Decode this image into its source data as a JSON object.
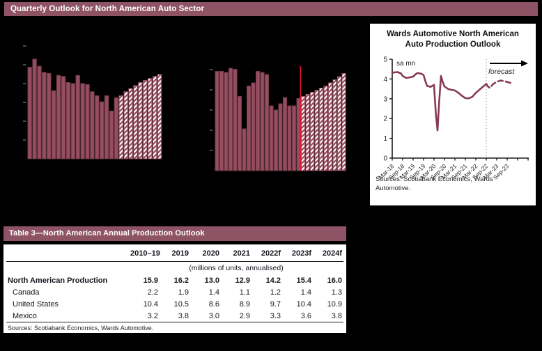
{
  "header": {
    "title": "Quarterly Outlook for North American Auto Sector",
    "bg": "#8e5364"
  },
  "colors": {
    "background": "#000000",
    "bar_fill": "#964d5f",
    "bar_outline": "#723a4a",
    "hatch_bg": "#ffffff",
    "hatch_stripe": "#964d5f",
    "tick": "#6e6e6e",
    "line": "#873a52",
    "forecast_divider_red": "#e8112d",
    "dotted_divider": "#a0a0a0",
    "axis": "#1a1a1a"
  },
  "chart_data": [
    {
      "type": "bar",
      "title": "",
      "note": "left quarterly bar chart, axis labels not visible; values are relative bar heights (% of plot height); hatched bars = forecast",
      "unit": "relative_height_pct",
      "solid": [
        90,
        98,
        91,
        85,
        84,
        67,
        82,
        81,
        75,
        74,
        82,
        74,
        73,
        66,
        62,
        56,
        62,
        47,
        60
      ],
      "hatched": [
        62,
        66,
        69,
        72,
        75,
        77,
        79,
        81,
        83
      ]
    },
    {
      "type": "bar",
      "title": "",
      "note": "right quarterly bar chart, axis labels not visible; red vertical line separates actual from forecast; hatched bars = forecast",
      "unit": "relative_height_pct",
      "solid": [
        95,
        95,
        94,
        98,
        97,
        71,
        40,
        81,
        84,
        95,
        94,
        92,
        62,
        58,
        64,
        70,
        62,
        62,
        69
      ],
      "hatched": [
        71,
        73,
        75,
        77,
        79,
        81,
        84,
        87,
        90,
        93
      ]
    },
    {
      "type": "line",
      "title": "Wards Automotive North American Auto Production Outlook",
      "ylabel": "sa mn",
      "ylim": [
        0,
        5
      ],
      "yticks": [
        0,
        1,
        2,
        3,
        4,
        5
      ],
      "x_unit": "months since Mar-2018",
      "x_tick_labels": [
        "Mar-18",
        "Sep-18",
        "Mar-19",
        "Sep-19",
        "Mar-20",
        "Sep-20",
        "Mar-21",
        "Sep-21",
        "Mar-22",
        "Sep-22",
        "Mar-23",
        "Sep-23"
      ],
      "x_tick_months": [
        0,
        6,
        12,
        18,
        24,
        30,
        36,
        42,
        48,
        54,
        60,
        66
      ],
      "divider_month": 54,
      "actual": [
        [
          0,
          4.3
        ],
        [
          1,
          4.33
        ],
        [
          3,
          4.35
        ],
        [
          5,
          4.28
        ],
        [
          6,
          4.15
        ],
        [
          8,
          4.05
        ],
        [
          10,
          4.08
        ],
        [
          12,
          4.12
        ],
        [
          14,
          4.28
        ],
        [
          15,
          4.3
        ],
        [
          17,
          4.25
        ],
        [
          18,
          4.2
        ],
        [
          19,
          3.9
        ],
        [
          20,
          3.65
        ],
        [
          22,
          3.6
        ],
        [
          23,
          3.65
        ],
        [
          24,
          3.7
        ],
        [
          25,
          2.3
        ],
        [
          26,
          1.4
        ],
        [
          27,
          2.9
        ],
        [
          28,
          4.15
        ],
        [
          29,
          3.85
        ],
        [
          30,
          3.62
        ],
        [
          32,
          3.5
        ],
        [
          34,
          3.45
        ],
        [
          36,
          3.42
        ],
        [
          38,
          3.3
        ],
        [
          40,
          3.15
        ],
        [
          42,
          3.03
        ],
        [
          44,
          3.02
        ],
        [
          46,
          3.1
        ],
        [
          48,
          3.3
        ],
        [
          50,
          3.45
        ],
        [
          52,
          3.6
        ],
        [
          54,
          3.75
        ]
      ],
      "forecast": [
        [
          54,
          3.75
        ],
        [
          55,
          3.62
        ],
        [
          56,
          3.55
        ],
        [
          58,
          3.75
        ],
        [
          60,
          3.85
        ],
        [
          62,
          3.92
        ],
        [
          64,
          3.9
        ],
        [
          66,
          3.85
        ],
        [
          68,
          3.8
        ]
      ],
      "legend_position": "none",
      "grid": false
    }
  ],
  "line_chart": {
    "title_line1": "Wards Automotive North American",
    "title_line2": "Auto Production Outlook",
    "unit_label": "sa mn",
    "forecast_label": "forecast",
    "sources": "Sources: Scotiabank Economics, Wards Automotive."
  },
  "table": {
    "title": "Table 3—North American Annual Production Outlook",
    "columns": [
      "2010–19",
      "2019",
      "2020",
      "2021",
      "2022f",
      "2023f",
      "2024f"
    ],
    "note": "(millions of units, annualised)",
    "rows": [
      {
        "label": "North American Production",
        "bold": true,
        "indent": false,
        "values": [
          "15.9",
          "16.2",
          "13.0",
          "12.9",
          "14.2",
          "15.4",
          "16.0"
        ]
      },
      {
        "label": "Canada",
        "bold": false,
        "indent": true,
        "values": [
          "2.2",
          "1.9",
          "1.4",
          "1.1",
          "1.2",
          "1.4",
          "1.3"
        ]
      },
      {
        "label": "United States",
        "bold": false,
        "indent": true,
        "values": [
          "10.4",
          "10.5",
          "8.6",
          "8.9",
          "9.7",
          "10.4",
          "10.9"
        ]
      },
      {
        "label": "Mexico",
        "bold": false,
        "indent": true,
        "values": [
          "3.2",
          "3.8",
          "3.0",
          "2.9",
          "3.3",
          "3.6",
          "3.8"
        ]
      }
    ],
    "sources": "Sources: Scotiabank Economics, Wards Automotive."
  }
}
